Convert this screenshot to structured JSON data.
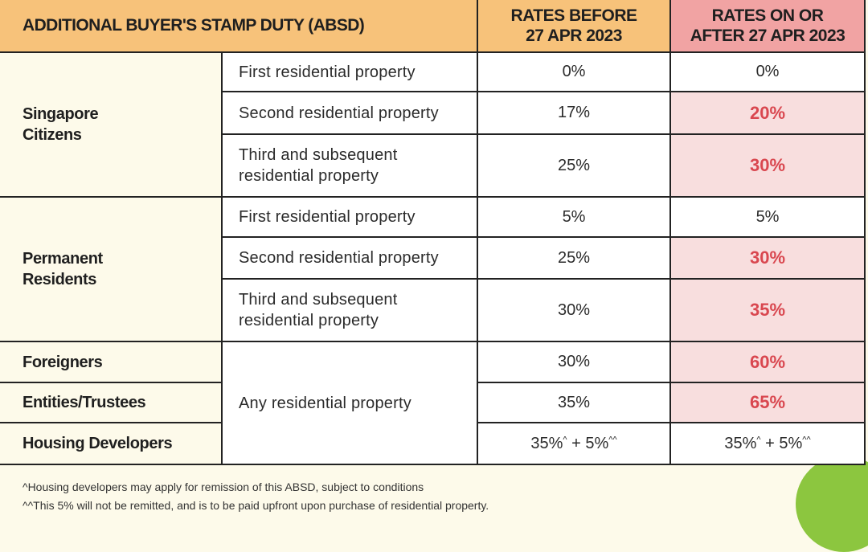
{
  "header": {
    "title": "ADDITIONAL BUYER'S STAMP DUTY (ABSD)",
    "before_line1": "RATES BEFORE",
    "before_line2": "27 APR 2023",
    "after_line1": "RATES ON OR",
    "after_line2": "AFTER 27 APR 2023"
  },
  "groups": {
    "citizens_line1": "Singapore",
    "citizens_line2": "Citizens",
    "pr_line1": "Permanent",
    "pr_line2": "Residents",
    "foreigners": "Foreigners",
    "entities": "Entities/Trustees",
    "developers": "Housing Developers"
  },
  "properties": {
    "first": "First residential property",
    "second": "Second residential property",
    "third_line1": "Third and subsequent",
    "third_line2": "residential property",
    "any": "Any residential property"
  },
  "rows": [
    {
      "before": "0%",
      "after": "0%"
    },
    {
      "before": "17%",
      "after": "20%"
    },
    {
      "before": "25%",
      "after": "30%"
    },
    {
      "before": "5%",
      "after": "5%"
    },
    {
      "before": "25%",
      "after": "30%"
    },
    {
      "before": "30%",
      "after": "35%"
    },
    {
      "before": "30%",
      "after": "60%"
    },
    {
      "before": "35%",
      "after": "65%"
    }
  ],
  "developers_rate": {
    "base": "35%",
    "base_mark": "^",
    "plus": " + 5%",
    "plus_mark": "^^"
  },
  "footnotes": [
    "^Housing developers may apply for remission of this ABSD, subject to conditions",
    "^^This 5% will not be remitted, and is to be paid upfront upon purchase of residential property."
  ],
  "colors": {
    "header_orange": "#f7c27a",
    "header_pink": "#f1a3a3",
    "highlight_bg": "#f8dede",
    "highlight_text": "#d9474f",
    "cream": "#fdfaea",
    "accent_green": "#8cc63f"
  }
}
